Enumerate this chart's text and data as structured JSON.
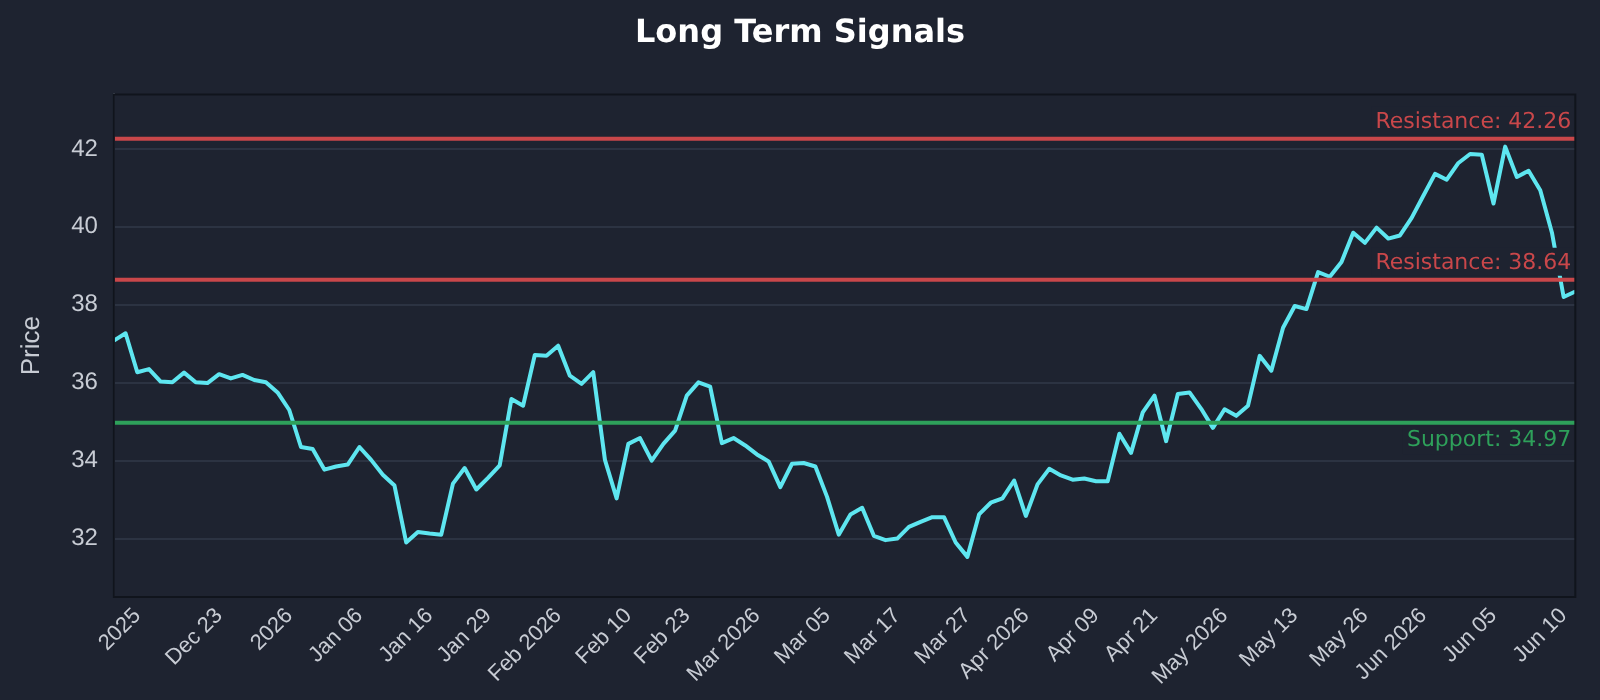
{
  "chart_data": {
    "type": "line",
    "title": "Long Term Signals",
    "ylabel": "Price",
    "categories": [
      null,
      null,
      "2025",
      null,
      null,
      null,
      null,
      null,
      null,
      "Dec 23",
      null,
      null,
      null,
      null,
      null,
      "2026",
      null,
      null,
      null,
      null,
      null,
      "Jan 06",
      null,
      null,
      null,
      null,
      null,
      "Jan 16",
      null,
      null,
      null,
      null,
      "Jan 29",
      null,
      null,
      null,
      null,
      null,
      "Feb 2026",
      null,
      null,
      null,
      null,
      null,
      "Feb 10",
      null,
      null,
      null,
      null,
      "Feb 23",
      null,
      null,
      null,
      null,
      null,
      "Mar 2026",
      null,
      null,
      null,
      null,
      null,
      "Mar 05",
      null,
      null,
      null,
      null,
      null,
      "Mar 17",
      null,
      null,
      null,
      null,
      null,
      "Mar 27",
      null,
      null,
      null,
      null,
      "Apr 2026",
      null,
      null,
      null,
      null,
      null,
      "Apr 09",
      null,
      null,
      null,
      null,
      "Apr 21",
      null,
      null,
      null,
      null,
      null,
      "May 2026",
      null,
      null,
      null,
      null,
      null,
      "May 13",
      null,
      null,
      null,
      null,
      null,
      "May 26",
      null,
      null,
      null,
      null,
      "Jun 2026",
      null,
      null,
      null,
      null,
      null,
      "Jun 05",
      null,
      null,
      null,
      null,
      null,
      "Jun 10",
      null
    ],
    "series": [
      {
        "color": "#5ee6f0",
        "values": [
          37.08,
          37.27,
          36.27,
          36.35,
          36.03,
          36.01,
          36.26,
          36.01,
          35.99,
          36.22,
          36.11,
          36.2,
          36.07,
          36.01,
          35.75,
          35.3,
          34.35,
          34.3,
          33.77,
          33.85,
          33.9,
          34.35,
          34.02,
          33.64,
          33.36,
          31.9,
          32.17,
          32.13,
          32.1,
          33.41,
          33.81,
          33.26,
          33.56,
          33.88,
          35.58,
          35.41,
          36.71,
          36.69,
          36.95,
          36.18,
          35.97,
          36.27,
          34.02,
          33.03,
          34.43,
          34.58,
          34.0,
          34.43,
          34.77,
          35.67,
          36.01,
          35.9,
          34.45,
          34.58,
          34.39,
          34.16,
          33.98,
          33.32,
          33.92,
          33.94,
          33.85,
          33.07,
          32.1,
          32.62,
          32.79,
          32.07,
          31.96,
          32.0,
          32.3,
          32.43,
          32.55,
          32.55,
          31.9,
          31.53,
          32.62,
          32.92,
          33.03,
          33.49,
          32.58,
          33.39,
          33.79,
          33.62,
          33.51,
          33.54,
          33.47,
          33.47,
          34.69,
          34.2,
          35.24,
          35.67,
          34.5,
          35.71,
          35.75,
          35.33,
          34.84,
          35.32,
          35.15,
          35.41,
          36.69,
          36.31,
          37.41,
          37.97,
          37.89,
          38.84,
          38.72,
          39.1,
          39.85,
          39.59,
          39.98,
          39.7,
          39.78,
          40.23,
          40.8,
          41.36,
          41.21,
          41.64,
          41.87,
          41.85,
          40.6,
          42.06,
          41.28,
          41.44,
          40.94,
          39.85,
          38.2,
          38.34
        ]
      }
    ],
    "ylim": [
      30.5,
      43.4
    ],
    "yticks": [
      32,
      34,
      36,
      38,
      40,
      42
    ],
    "grid": "y",
    "legend": false,
    "marker": "none",
    "line_style": "solid",
    "ref_lines": [
      {
        "axis": "y",
        "value": 42.26,
        "label": "Resistance: 42.26",
        "color": "#c9474a"
      },
      {
        "axis": "y",
        "value": 38.64,
        "label": "Resistance: 38.64",
        "color": "#c9474a"
      },
      {
        "axis": "y",
        "value": 34.97,
        "label": "Support: 34.97",
        "color": "#2ea05a"
      }
    ]
  }
}
